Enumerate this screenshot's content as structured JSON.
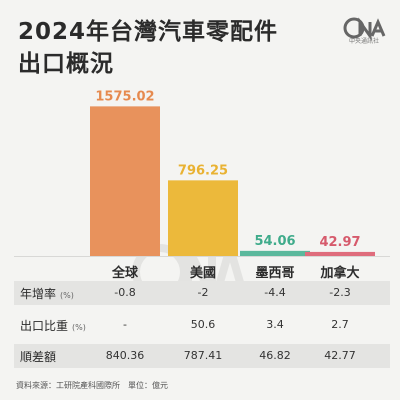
{
  "title_line1": "2024年台灣汽車零配件",
  "title_line2": "出口概況",
  "logo": {
    "text": "CNA",
    "subtitle": "中央通訊社"
  },
  "chart_data": {
    "type": "bar",
    "categories": [
      "全球",
      "美國",
      "墨西哥",
      "加拿大"
    ],
    "values": [
      1575.02,
      796.25,
      54.06,
      42.97
    ],
    "value_labels": [
      "1575.02",
      "796.25",
      "54.06",
      "42.97"
    ],
    "colors": [
      "#e8925c",
      "#ecb93b",
      "#5bb89c",
      "#df6c7c"
    ],
    "label_colors": [
      "#e68a4f",
      "#e9b232",
      "#3fab8b",
      "#d65a6c"
    ],
    "ylim": [
      0,
      1600
    ]
  },
  "table": {
    "rows": [
      {
        "label": "年增率",
        "unit": "(%)",
        "values": [
          "-0.8",
          "-2",
          "-4.4",
          "-2.3"
        ]
      },
      {
        "label": "出口比重",
        "unit": "(%)",
        "values": [
          "-",
          "50.6",
          "3.4",
          "2.7"
        ]
      },
      {
        "label": "順差額",
        "unit": "",
        "values": [
          "840.36",
          "787.41",
          "46.82",
          "42.77"
        ]
      }
    ]
  },
  "source": "資料來源：工研院產科國際所　單位：億元"
}
